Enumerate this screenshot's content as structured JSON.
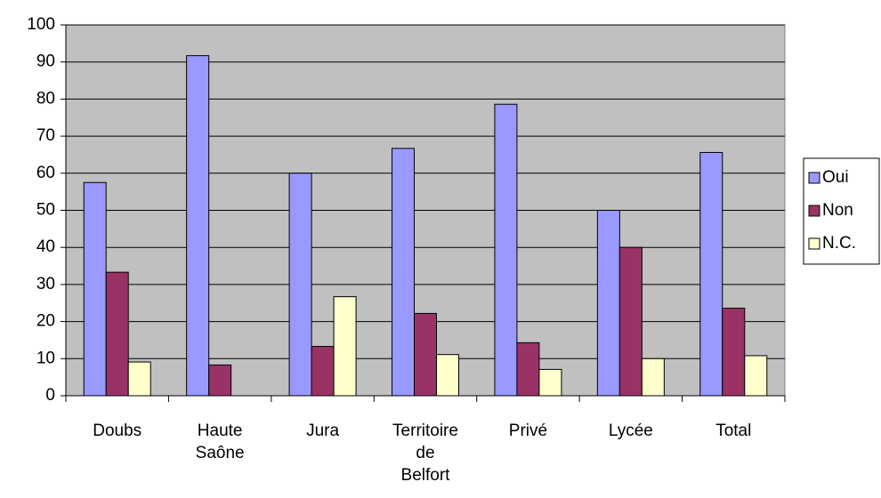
{
  "chart_data": {
    "type": "bar",
    "categories": [
      "Doubs",
      "Haute Saône",
      "Jura",
      "Territoire de Belfort",
      "Privé",
      "Lycée",
      "Total"
    ],
    "series": [
      {
        "name": "Oui",
        "color": "#9999ff",
        "values": [
          57.5,
          91.7,
          60,
          66.7,
          78.6,
          50,
          65.6
        ]
      },
      {
        "name": "Non",
        "color": "#993366",
        "values": [
          33.3,
          8.3,
          13.3,
          22.2,
          14.3,
          40,
          23.6
        ]
      },
      {
        "name": "N.C.",
        "color": "#ffffcc",
        "values": [
          9.1,
          0,
          26.7,
          11.1,
          7.1,
          10,
          10.8
        ]
      }
    ],
    "ylim": [
      0,
      100
    ],
    "yticks": [
      0,
      10,
      20,
      30,
      40,
      50,
      60,
      70,
      80,
      90,
      100
    ],
    "grid": true,
    "legend": "right"
  }
}
